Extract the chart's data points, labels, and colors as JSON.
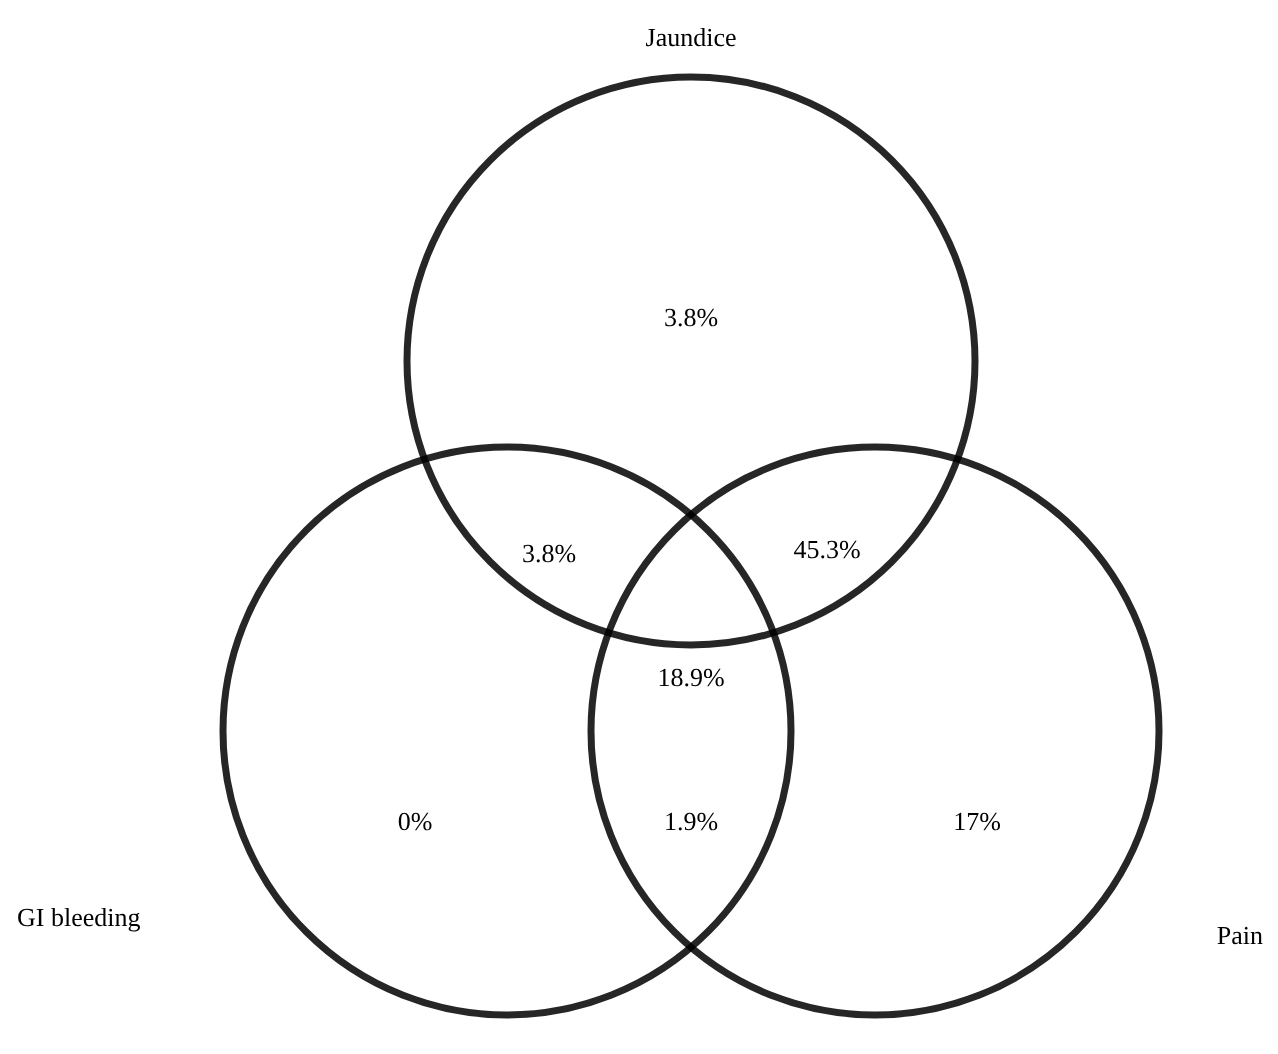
{
  "chart_data": {
    "type": "other",
    "annotations": [
      "Jaundice",
      "GI bleeding",
      "Pain"
    ],
    "categories": [
      null,
      null,
      null,
      null,
      null,
      null,
      null
    ],
    "values": [
      3.8,
      3.8,
      45.3,
      18.9,
      0,
      1.9,
      17
    ],
    "value_labels": [
      "3.8%",
      "3.8%",
      "45.3%",
      "18.9%",
      "0%",
      "1.9%",
      "17%"
    ],
    "color": "#000000"
  }
}
